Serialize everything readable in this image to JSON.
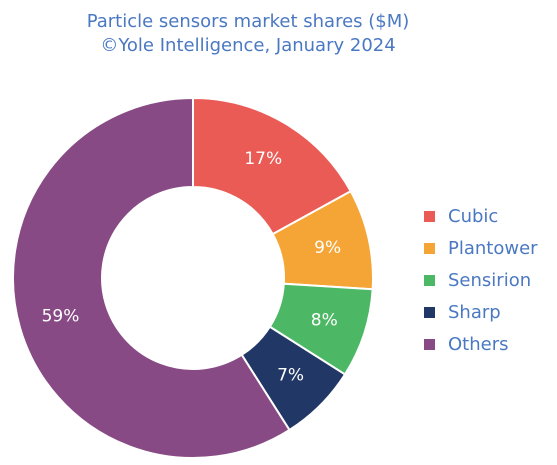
{
  "chart_data": {
    "type": "pie",
    "donut": true,
    "title": "Particle sensors market shares ($M)",
    "subtitle": "©Yole Intelligence, January 2024",
    "categories": [
      "Cubic",
      "Plantower",
      "Sensirion",
      "Sharp",
      "Others"
    ],
    "values": [
      17,
      9,
      8,
      7,
      59
    ],
    "labels": [
      "17%",
      "9%",
      "8%",
      "7%",
      "59%"
    ],
    "colors": [
      "#eb5b55",
      "#f4a535",
      "#4cb865",
      "#213766",
      "#884a84"
    ],
    "legend_position": "right"
  }
}
